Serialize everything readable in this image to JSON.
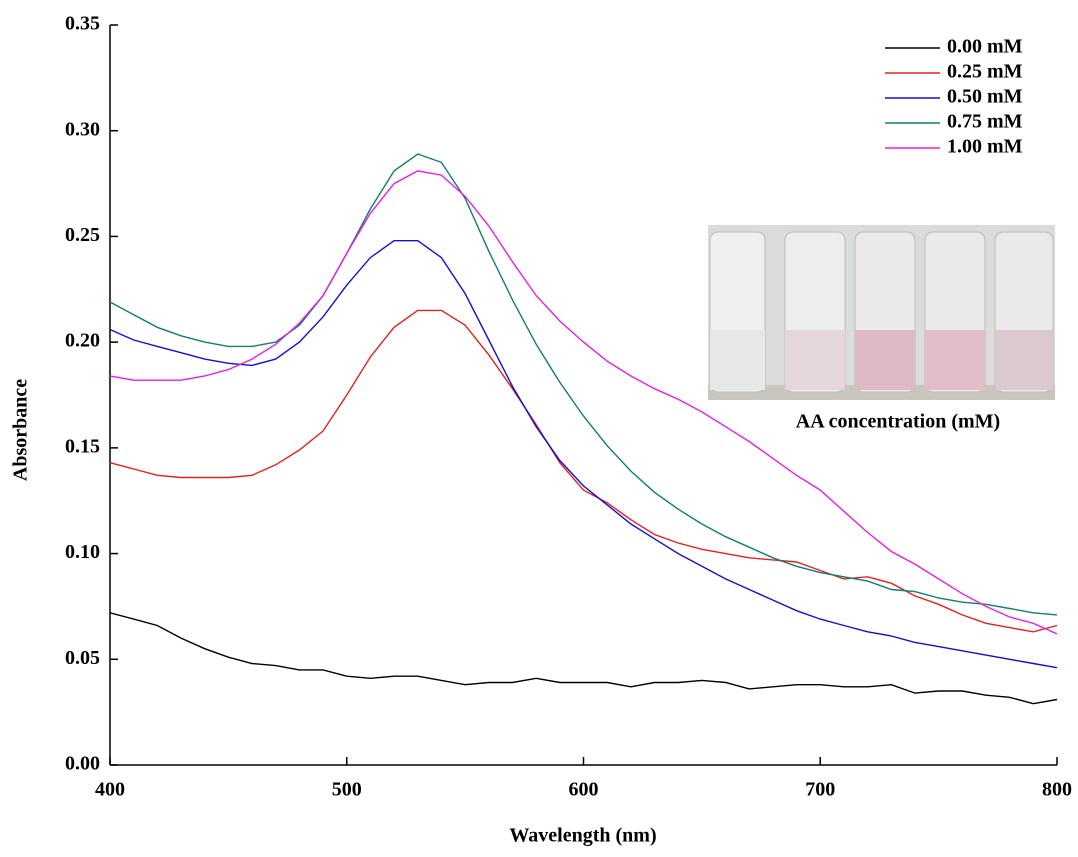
{
  "chart_data": {
    "type": "line",
    "x_label": "Wavelength (nm)",
    "y_label": "Absorbance",
    "annotation": "AA concentration (mM)",
    "legend": "upper right",
    "x": [
      400,
      410,
      420,
      430,
      440,
      450,
      460,
      470,
      480,
      490,
      500,
      510,
      520,
      530,
      540,
      550,
      560,
      570,
      580,
      590,
      600,
      610,
      620,
      630,
      640,
      650,
      660,
      670,
      680,
      690,
      700,
      710,
      720,
      730,
      740,
      750,
      760,
      770,
      780,
      790,
      800
    ],
    "series": [
      {
        "name": "0.00 mM",
        "color": "#000000",
        "values": [
          0.072,
          0.069,
          0.066,
          0.06,
          0.055,
          0.051,
          0.048,
          0.047,
          0.045,
          0.045,
          0.042,
          0.041,
          0.042,
          0.042,
          0.04,
          0.038,
          0.039,
          0.039,
          0.041,
          0.039,
          0.039,
          0.039,
          0.037,
          0.039,
          0.039,
          0.04,
          0.039,
          0.036,
          0.037,
          0.038,
          0.038,
          0.037,
          0.037,
          0.038,
          0.034,
          0.035,
          0.035,
          0.033,
          0.032,
          0.029,
          0.031
        ]
      },
      {
        "name": "0.25 mM",
        "color": "#e8201c",
        "values": [
          0.143,
          0.14,
          0.137,
          0.136,
          0.136,
          0.136,
          0.137,
          0.142,
          0.149,
          0.158,
          0.175,
          0.193,
          0.207,
          0.215,
          0.215,
          0.208,
          0.194,
          0.178,
          0.161,
          0.143,
          0.13,
          0.124,
          0.116,
          0.109,
          0.105,
          0.102,
          0.1,
          0.098,
          0.097,
          0.096,
          0.092,
          0.088,
          0.089,
          0.086,
          0.08,
          0.076,
          0.071,
          0.067,
          0.065,
          0.063,
          0.066
        ]
      },
      {
        "name": "0.50 mM",
        "color": "#1010d8",
        "values": [
          0.206,
          0.201,
          0.198,
          0.195,
          0.192,
          0.19,
          0.189,
          0.192,
          0.2,
          0.212,
          0.227,
          0.24,
          0.248,
          0.248,
          0.24,
          0.223,
          0.201,
          0.179,
          0.16,
          0.144,
          0.132,
          0.123,
          0.114,
          0.107,
          0.1,
          0.094,
          0.088,
          0.083,
          0.078,
          0.073,
          0.069,
          0.066,
          0.063,
          0.061,
          0.058,
          0.056,
          0.054,
          0.052,
          0.05,
          0.048,
          0.046
        ]
      },
      {
        "name": "0.75 mM",
        "color": "#0e7f70",
        "values": [
          0.219,
          0.213,
          0.207,
          0.203,
          0.2,
          0.198,
          0.198,
          0.2,
          0.208,
          0.222,
          0.242,
          0.263,
          0.281,
          0.289,
          0.285,
          0.268,
          0.243,
          0.22,
          0.199,
          0.181,
          0.165,
          0.151,
          0.139,
          0.129,
          0.121,
          0.114,
          0.108,
          0.103,
          0.098,
          0.094,
          0.091,
          0.089,
          0.087,
          0.083,
          0.082,
          0.079,
          0.077,
          0.076,
          0.074,
          0.072,
          0.071
        ]
      },
      {
        "name": "1.00 mM",
        "color": "#e81ee8",
        "values": [
          0.184,
          0.182,
          0.182,
          0.182,
          0.184,
          0.187,
          0.192,
          0.199,
          0.209,
          0.222,
          0.242,
          0.261,
          0.275,
          0.281,
          0.279,
          0.269,
          0.255,
          0.238,
          0.222,
          0.21,
          0.2,
          0.191,
          0.184,
          0.178,
          0.173,
          0.167,
          0.16,
          0.153,
          0.145,
          0.137,
          0.13,
          0.12,
          0.11,
          0.101,
          0.095,
          0.088,
          0.081,
          0.075,
          0.07,
          0.067,
          0.062
        ]
      }
    ],
    "xlim": [
      400,
      800
    ],
    "xticks": [
      400,
      500,
      600,
      700,
      800
    ],
    "ylim": [
      0,
      0.35
    ],
    "yticks": [
      {
        "value": 0,
        "label": "0.00"
      },
      {
        "value": 0.05,
        "label": "0.05"
      },
      {
        "value": 0.1,
        "label": "0.10"
      },
      {
        "value": 0.15,
        "label": "0.15"
      },
      {
        "value": 0.2,
        "label": "0.20"
      },
      {
        "value": 0.25,
        "label": "0.25"
      },
      {
        "value": 0.3,
        "label": "0.30"
      },
      {
        "value": 0.35,
        "label": "0.35"
      }
    ]
  }
}
